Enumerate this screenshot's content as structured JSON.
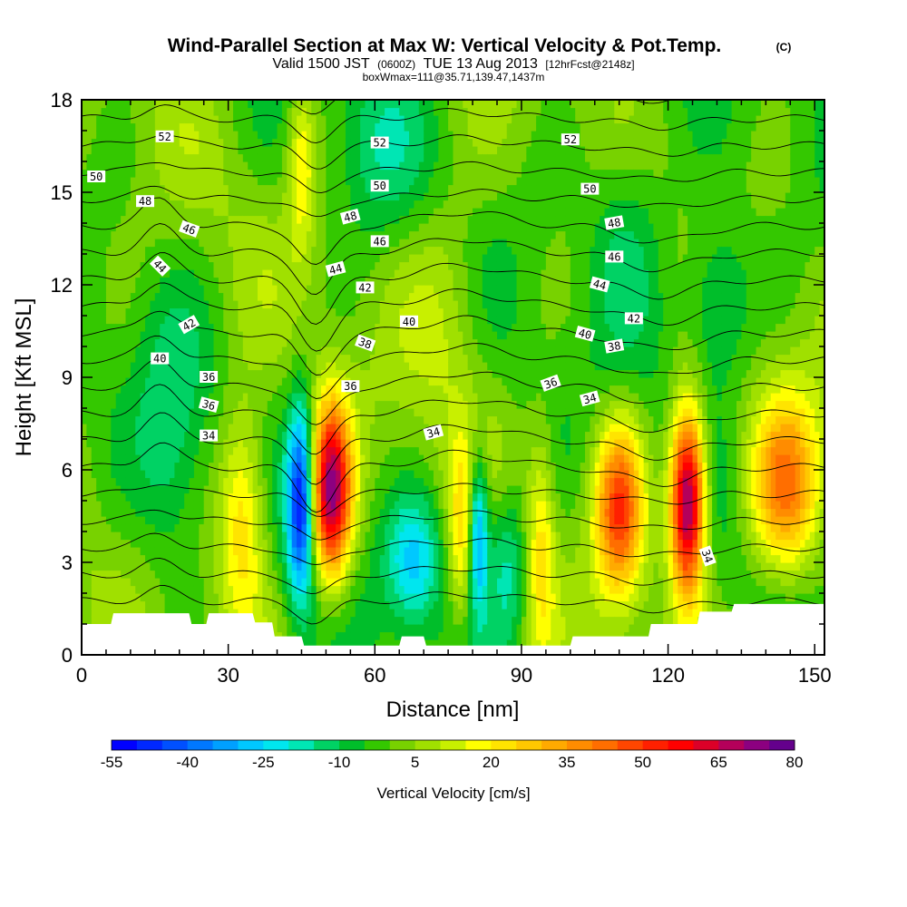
{
  "header": {
    "title": "Wind-Parallel Section at Max W: Vertical Velocity & Pot.Temp.",
    "copyright": "(C)",
    "valid_prefix": "Valid 1500 JST",
    "valid_zulu": "(0600Z)",
    "valid_date": "TUE 13 Aug 2013",
    "forecast": "[12hrFcst@2148z]",
    "box_info": "boxWmax=111@35.71,139.47,1437m"
  },
  "chart_data": {
    "type": "heatmap",
    "title": "Wind-Parallel Section at Max W: Vertical Velocity & Pot.Temp.",
    "xlabel": "Distance [nm]",
    "ylabel": "Height [Kft MSL]",
    "xlim": [
      0,
      152
    ],
    "ylim": [
      0,
      18
    ],
    "x_ticks": [
      "0",
      "30",
      "60",
      "90",
      "120",
      "150"
    ],
    "y_ticks": [
      "0",
      "3",
      "6",
      "9",
      "12",
      "15",
      "18"
    ],
    "colorbar": {
      "label": "Vertical Velocity [cm/s]",
      "tick_labels": [
        "-55",
        "-40",
        "-25",
        "-10",
        "5",
        "20",
        "35",
        "50",
        "65",
        "80"
      ],
      "bin_edges": [
        -55,
        -50,
        -45,
        -40,
        -35,
        -30,
        -25,
        -20,
        -15,
        -10,
        -5,
        0,
        5,
        10,
        15,
        20,
        25,
        30,
        35,
        40,
        45,
        50,
        55,
        60,
        65,
        70,
        75,
        80
      ],
      "colors": [
        "#0000ff",
        "#0028ff",
        "#0050ff",
        "#0078ff",
        "#00a0ff",
        "#00c8ff",
        "#00e6ef",
        "#00e6b4",
        "#00d264",
        "#00be2a",
        "#34c800",
        "#78d200",
        "#a0e000",
        "#c8f000",
        "#ffff00",
        "#ffe400",
        "#ffc800",
        "#ffaa00",
        "#ff8c00",
        "#ff6e00",
        "#ff4600",
        "#ff2000",
        "#ff0000",
        "#dc0028",
        "#b4005a",
        "#8c0080",
        "#64008c"
      ]
    },
    "background_w": 0,
    "updraft_cores": [
      {
        "x": 51,
        "z": 5.3,
        "w": 72,
        "sx": 3.0,
        "sz": 2.0
      },
      {
        "x": 124,
        "z": 5.0,
        "w": 80,
        "sx": 2.5,
        "sz": 2.1
      },
      {
        "x": 110,
        "z": 4.8,
        "w": 48,
        "sx": 3.5,
        "sz": 2.0
      },
      {
        "x": 144,
        "z": 5.5,
        "w": 40,
        "sx": 5.0,
        "sz": 2.0
      },
      {
        "x": 33,
        "z": 4.5,
        "w": 28,
        "sx": 3.5,
        "sz": 2.5
      },
      {
        "x": 78,
        "z": 4.0,
        "w": 22,
        "sx": 2.0,
        "sz": 2.0
      },
      {
        "x": 94,
        "z": 3.5,
        "w": 20,
        "sx": 2.0,
        "sz": 2.5
      },
      {
        "x": 45,
        "z": 16.0,
        "w": 20,
        "sx": 2.0,
        "sz": 2.0
      },
      {
        "x": 75,
        "z": 11.5,
        "w": 10,
        "sx": 6.0,
        "sz": 3.0
      }
    ],
    "downdraft_cores": [
      {
        "x": 45,
        "z": 5.0,
        "w": -52,
        "sx": 2.0,
        "sz": 2.2
      },
      {
        "x": 81,
        "z": 4.0,
        "w": -40,
        "sx": 1.5,
        "sz": 1.8
      },
      {
        "x": 68,
        "z": 3.0,
        "w": -25,
        "sx": 4.0,
        "sz": 1.5
      },
      {
        "x": 87,
        "z": 3.0,
        "w": -20,
        "sx": 3.0,
        "sz": 1.8
      },
      {
        "x": 130,
        "z": 11.5,
        "w": -18,
        "sx": 5.0,
        "sz": 2.0
      },
      {
        "x": 18,
        "z": 6.5,
        "w": -12,
        "sx": 5.0,
        "sz": 3.0
      },
      {
        "x": 60,
        "z": 16.5,
        "w": -10,
        "sx": 6.0,
        "sz": 2.0
      },
      {
        "x": 112,
        "z": 14.0,
        "w": -12,
        "sx": 6.0,
        "sz": 2.5
      }
    ],
    "terrain_kft": [
      [
        0,
        1.0
      ],
      [
        6,
        1.0
      ],
      [
        6.5,
        1.35
      ],
      [
        22,
        1.35
      ],
      [
        22.5,
        1.0
      ],
      [
        25.5,
        1.0
      ],
      [
        26,
        1.35
      ],
      [
        35,
        1.35
      ],
      [
        35.5,
        1.05
      ],
      [
        39,
        1.05
      ],
      [
        39.5,
        0.6
      ],
      [
        45,
        0.6
      ],
      [
        45.5,
        0.3
      ],
      [
        65,
        0.3
      ],
      [
        65.5,
        0.6
      ],
      [
        70,
        0.6
      ],
      [
        70.5,
        0.3
      ],
      [
        100,
        0.3
      ],
      [
        100.5,
        0.6
      ],
      [
        116,
        0.6
      ],
      [
        116.5,
        1.0
      ],
      [
        126,
        1.0
      ],
      [
        126.5,
        1.4
      ],
      [
        133,
        1.4
      ],
      [
        133.5,
        1.65
      ],
      [
        152,
        1.65
      ]
    ],
    "theta_contours": {
      "levels": [
        33,
        34,
        35,
        36,
        37,
        38,
        39,
        40,
        41,
        42,
        43,
        44,
        45,
        46,
        47,
        48,
        49,
        50,
        51,
        52,
        53
      ],
      "labels": [
        {
          "text": "52",
          "x": 17,
          "z": 16.8,
          "rot": 0
        },
        {
          "text": "52",
          "x": 61,
          "z": 16.6,
          "rot": 0
        },
        {
          "text": "52",
          "x": 100,
          "z": 16.7,
          "rot": 0
        },
        {
          "text": "50",
          "x": 3,
          "z": 15.5,
          "rot": 0
        },
        {
          "text": "50",
          "x": 61,
          "z": 15.2,
          "rot": 0
        },
        {
          "text": "50",
          "x": 104,
          "z": 15.1,
          "rot": 0
        },
        {
          "text": "48",
          "x": 13,
          "z": 14.7,
          "rot": 0
        },
        {
          "text": "48",
          "x": 55,
          "z": 14.2,
          "rot": -15
        },
        {
          "text": "48",
          "x": 109,
          "z": 14.0,
          "rot": -10
        },
        {
          "text": "46",
          "x": 22,
          "z": 13.8,
          "rot": 20
        },
        {
          "text": "46",
          "x": 61,
          "z": 13.4,
          "rot": 0
        },
        {
          "text": "46",
          "x": 109,
          "z": 12.9,
          "rot": 0
        },
        {
          "text": "44",
          "x": 16,
          "z": 12.6,
          "rot": 45
        },
        {
          "text": "44",
          "x": 52,
          "z": 12.5,
          "rot": -15
        },
        {
          "text": "44",
          "x": 106,
          "z": 12.0,
          "rot": 15
        },
        {
          "text": "42",
          "x": 58,
          "z": 11.9,
          "rot": 0
        },
        {
          "text": "42",
          "x": 22,
          "z": 10.7,
          "rot": -30
        },
        {
          "text": "42",
          "x": 113,
          "z": 10.9,
          "rot": 0
        },
        {
          "text": "40",
          "x": 67,
          "z": 10.8,
          "rot": 0
        },
        {
          "text": "40",
          "x": 16,
          "z": 9.6,
          "rot": 0
        },
        {
          "text": "40",
          "x": 103,
          "z": 10.4,
          "rot": 15
        },
        {
          "text": "38",
          "x": 58,
          "z": 10.1,
          "rot": 20
        },
        {
          "text": "38",
          "x": 109,
          "z": 10.0,
          "rot": -10
        },
        {
          "text": "36",
          "x": 26,
          "z": 9.0,
          "rot": 0
        },
        {
          "text": "36",
          "x": 55,
          "z": 8.7,
          "rot": 0
        },
        {
          "text": "36",
          "x": 96,
          "z": 8.8,
          "rot": -20
        },
        {
          "text": "36",
          "x": 26,
          "z": 8.1,
          "rot": 15
        },
        {
          "text": "34",
          "x": 104,
          "z": 8.3,
          "rot": -15
        },
        {
          "text": "34",
          "x": 72,
          "z": 7.2,
          "rot": -15
        },
        {
          "text": "34",
          "x": 26,
          "z": 7.1,
          "rot": 0
        },
        {
          "text": "34",
          "x": 128,
          "z": 3.2,
          "rot": 70
        }
      ]
    }
  }
}
